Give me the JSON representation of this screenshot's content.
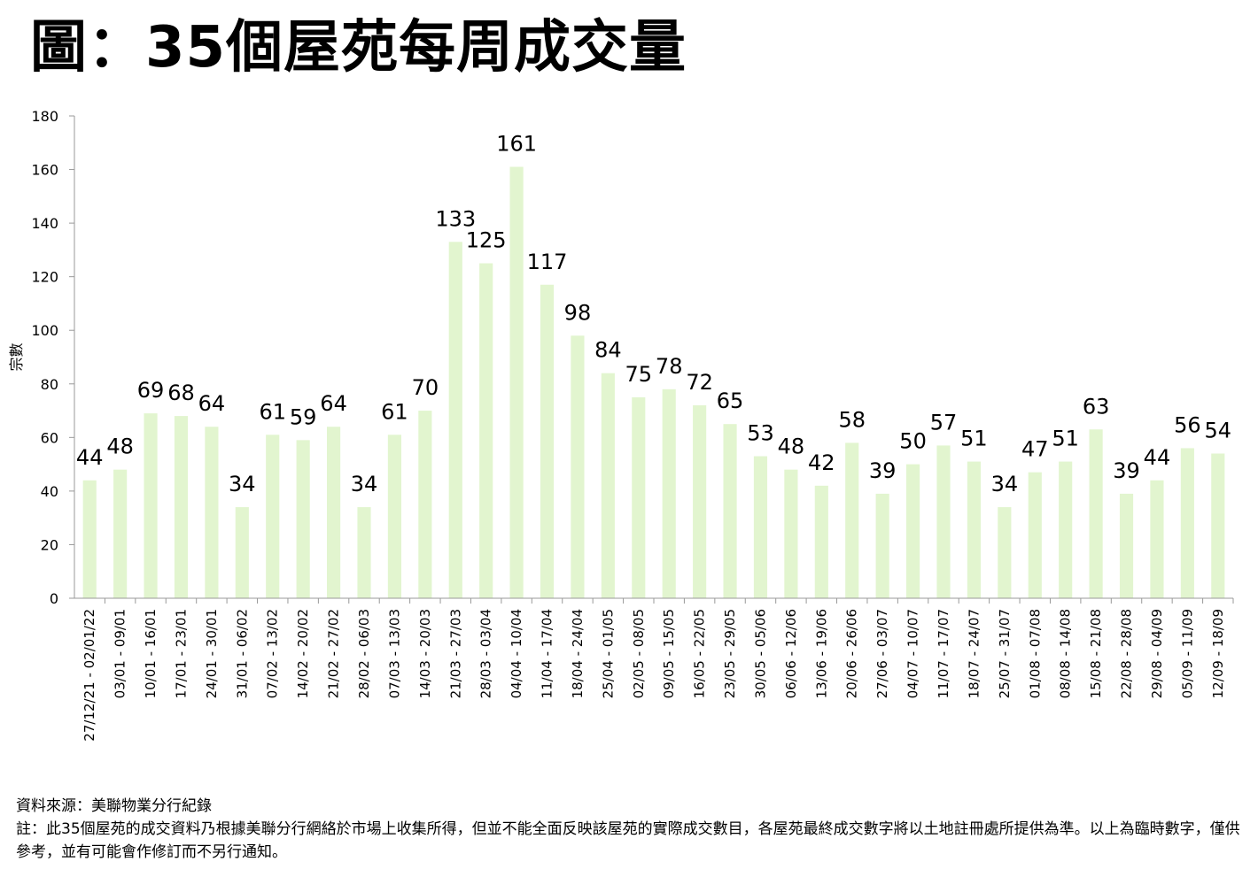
{
  "title": "圖：35個屋苑每周成交量",
  "footer": {
    "source": "資料來源：美聯物業分行紀錄",
    "note": "註：此35個屋苑的成交資料乃根據美聯分行網絡於市場上收集所得，但並不能全面反映該屋苑的實際成交數目，各屋苑最終成交數字將以土地註冊處所提供為準。以上為臨時數字，僅供參考，並有可能會作修訂而不另行通知。"
  },
  "colors": {
    "bar": "#e2f5cf",
    "axis": "#999999"
  },
  "chart_data": {
    "type": "bar",
    "title": "",
    "xlabel": "",
    "ylabel": "宗數",
    "ylim": [
      0,
      180
    ],
    "yticks": [
      0,
      20,
      40,
      60,
      80,
      100,
      120,
      140,
      160,
      180
    ],
    "grid": false,
    "legend": "none",
    "categories": [
      "27/12/21 - 02/01/22",
      "03/01 - 09/01",
      "10/01 - 16/01",
      "17/01 - 23/01",
      "24/01 - 30/01",
      "31/01 - 06/02",
      "07/02 - 13/02",
      "14/02 - 20/02",
      "21/02 - 27/02",
      "28/02 - 06/03",
      "07/03 - 13/03",
      "14/03 - 20/03",
      "21/03 - 27/03",
      "28/03 - 03/04",
      "04/04 - 10/04",
      "11/04 - 17/04",
      "18/04 - 24/04",
      "25/04 - 01/05",
      "02/05 - 08/05",
      "09/05 - 15/05",
      "16/05 - 22/05",
      "23/05 - 29/05",
      "30/05 - 05/06",
      "06/06 - 12/06",
      "13/06 - 19/06",
      "20/06 - 26/06",
      "27/06 - 03/07",
      "04/07 - 10/07",
      "11/07 - 17/07",
      "18/07 - 24/07",
      "25/07 - 31/07",
      "01/08 - 07/08",
      "08/08 - 14/08",
      "15/08 - 21/08",
      "22/08 - 28/08",
      "29/08 - 04/09",
      "05/09 - 11/09",
      "12/09 - 18/09"
    ],
    "values": [
      44,
      48,
      69,
      68,
      64,
      34,
      61,
      59,
      64,
      34,
      61,
      70,
      133,
      125,
      161,
      117,
      98,
      84,
      75,
      78,
      72,
      65,
      53,
      48,
      42,
      58,
      39,
      50,
      57,
      51,
      34,
      47,
      51,
      63,
      39,
      44,
      56,
      54
    ]
  }
}
